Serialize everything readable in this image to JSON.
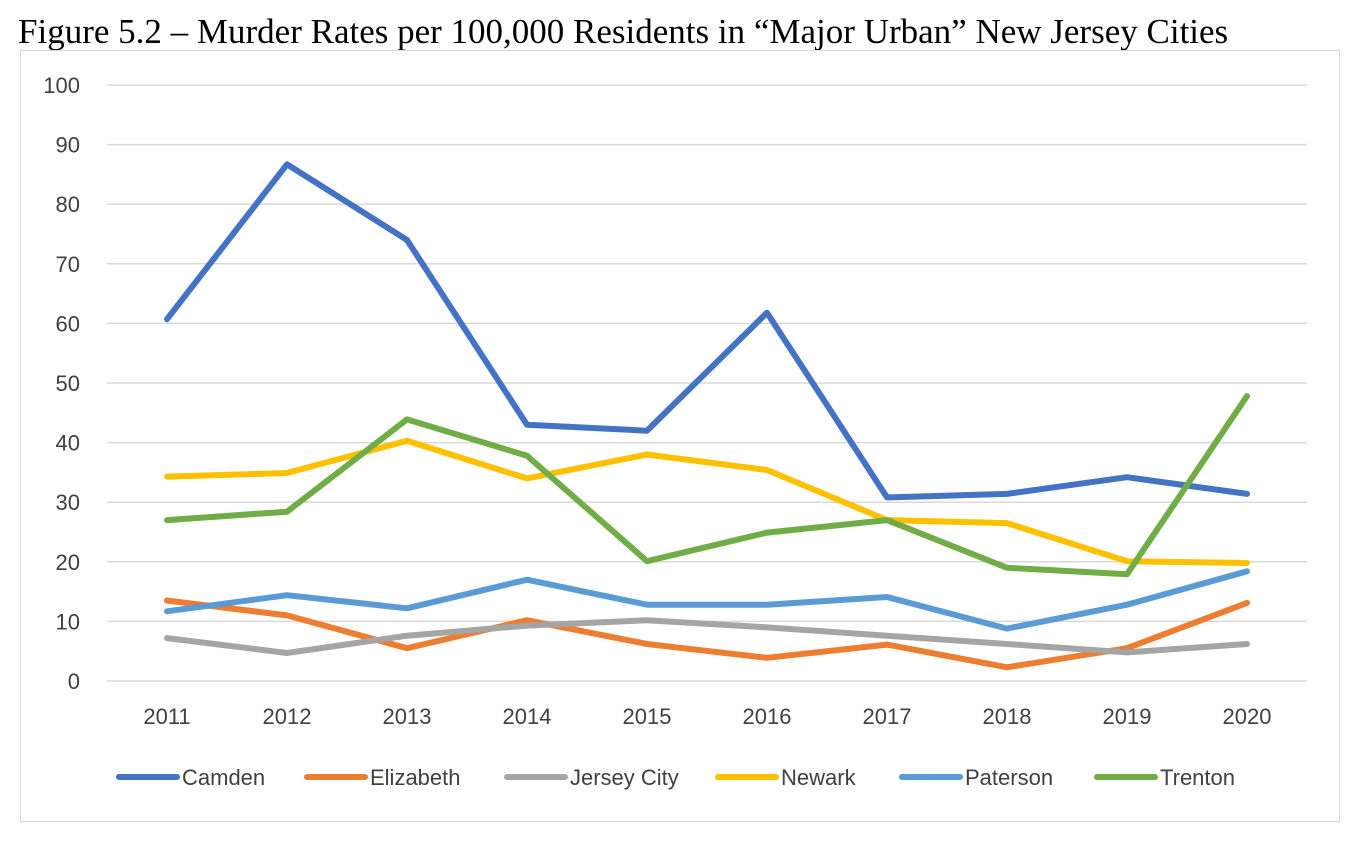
{
  "chart_data": {
    "type": "line",
    "title": "Figure 5.2 – Murder Rates per 100,000 Residents in “Major Urban” New Jersey Cities",
    "xlabel": "",
    "ylabel": "",
    "ylim": [
      0,
      100
    ],
    "yticks": [
      "0",
      "10",
      "20",
      "30",
      "40",
      "50",
      "60",
      "70",
      "80",
      "90",
      "100"
    ],
    "categories": [
      "2011",
      "2012",
      "2013",
      "2014",
      "2015",
      "2016",
      "2017",
      "2018",
      "2019",
      "2020"
    ],
    "grid": "horizontal",
    "legend_position": "bottom",
    "series": [
      {
        "name": "Camden",
        "color": "#4472c4",
        "values": [
          60.7,
          86.7,
          74.0,
          43.0,
          42.0,
          61.8,
          30.8,
          31.4,
          34.2,
          31.4
        ]
      },
      {
        "name": "Elizabeth",
        "color": "#ed7d31",
        "values": [
          13.5,
          11.0,
          5.5,
          10.2,
          6.2,
          3.9,
          6.1,
          2.3,
          5.5,
          13.1
        ]
      },
      {
        "name": "Jersey City",
        "color": "#a5a5a5",
        "values": [
          7.2,
          4.7,
          7.6,
          9.3,
          10.2,
          9.0,
          7.6,
          6.2,
          4.8,
          6.2
        ]
      },
      {
        "name": "Newark",
        "color": "#ffc000",
        "values": [
          34.3,
          34.9,
          40.3,
          34.0,
          38.0,
          35.4,
          27.0,
          26.5,
          20.1,
          19.8
        ]
      },
      {
        "name": "Paterson",
        "color": "#5b9bd5",
        "values": [
          11.7,
          14.4,
          12.2,
          17.0,
          12.8,
          12.8,
          14.1,
          8.8,
          12.8,
          18.4
        ]
      },
      {
        "name": "Trenton",
        "color": "#70ad47",
        "values": [
          27.0,
          28.4,
          43.9,
          37.8,
          20.1,
          24.9,
          27.0,
          19.0,
          17.9,
          47.8
        ]
      }
    ]
  }
}
